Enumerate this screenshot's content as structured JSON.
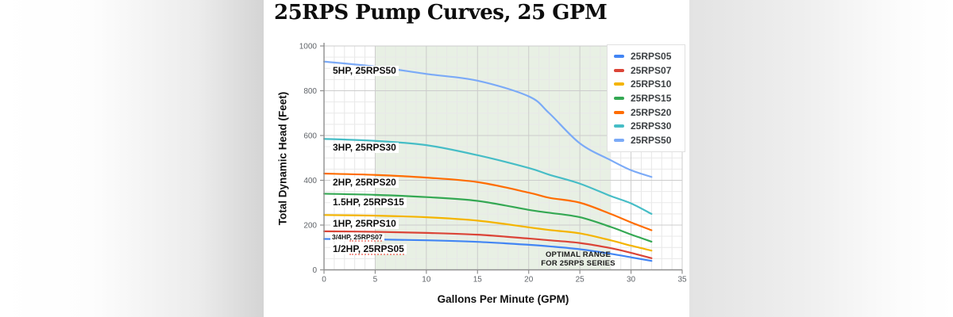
{
  "page": {
    "title": "25RPS Pump Curves, 25 GPM"
  },
  "chart_data": {
    "type": "line",
    "title": "25RPS Pump Curves, 25 GPM",
    "xlabel": "Gallons Per Minute (GPM)",
    "ylabel": "Total Dynamic Head (Feet)",
    "xlim": [
      0,
      35
    ],
    "ylim": [
      0,
      1000
    ],
    "x_ticks": [
      0,
      5,
      10,
      15,
      20,
      25,
      30,
      35
    ],
    "y_ticks": [
      0,
      200,
      400,
      600,
      800,
      1000
    ],
    "minor_grid": {
      "x_step": 1,
      "y_step": 50
    },
    "grid": true,
    "legend_position": "top-right",
    "optimal_band": {
      "x_start": 5,
      "x_end": 28,
      "color": "#e8f0e4",
      "label_line1": "OPTIMAL RANGE",
      "label_line2": "FOR 25RPS SERIES"
    },
    "x": [
      0,
      5,
      10,
      15,
      20,
      22,
      25,
      28,
      30,
      32
    ],
    "series": [
      {
        "name": "25RPS05",
        "label": "1/2HP, 25RPS05",
        "color": "#4285F4",
        "values": [
          138,
          136,
          132,
          125,
          112,
          105,
          92,
          72,
          56,
          40
        ]
      },
      {
        "name": "25RPS07",
        "label": "3/4HP, 25RPS07",
        "color": "#DB4437",
        "values": [
          172,
          170,
          165,
          157,
          140,
          132,
          120,
          97,
          76,
          52
        ]
      },
      {
        "name": "25RPS10",
        "label": "1HP, 25RPS10",
        "color": "#F4B400",
        "values": [
          245,
          242,
          235,
          220,
          190,
          178,
          163,
          132,
          108,
          86
        ]
      },
      {
        "name": "25RPS15",
        "label": "1.5HP, 25RPS15",
        "color": "#34A853",
        "values": [
          340,
          335,
          325,
          308,
          268,
          255,
          235,
          192,
          158,
          126
        ]
      },
      {
        "name": "25RPS20",
        "label": "2HP, 25RPS20",
        "color": "#FF6D01",
        "values": [
          430,
          424,
          412,
          392,
          345,
          322,
          300,
          250,
          212,
          177
        ]
      },
      {
        "name": "25RPS30",
        "label": "3HP, 25RPS30",
        "color": "#46BDC6",
        "values": [
          585,
          576,
          557,
          512,
          455,
          425,
          385,
          330,
          297,
          250
        ]
      },
      {
        "name": "25RPS50",
        "label": "5HP, 25RPS50",
        "color": "#7BAAF7",
        "values": [
          930,
          908,
          875,
          845,
          775,
          700,
          565,
          490,
          445,
          415
        ]
      }
    ]
  }
}
